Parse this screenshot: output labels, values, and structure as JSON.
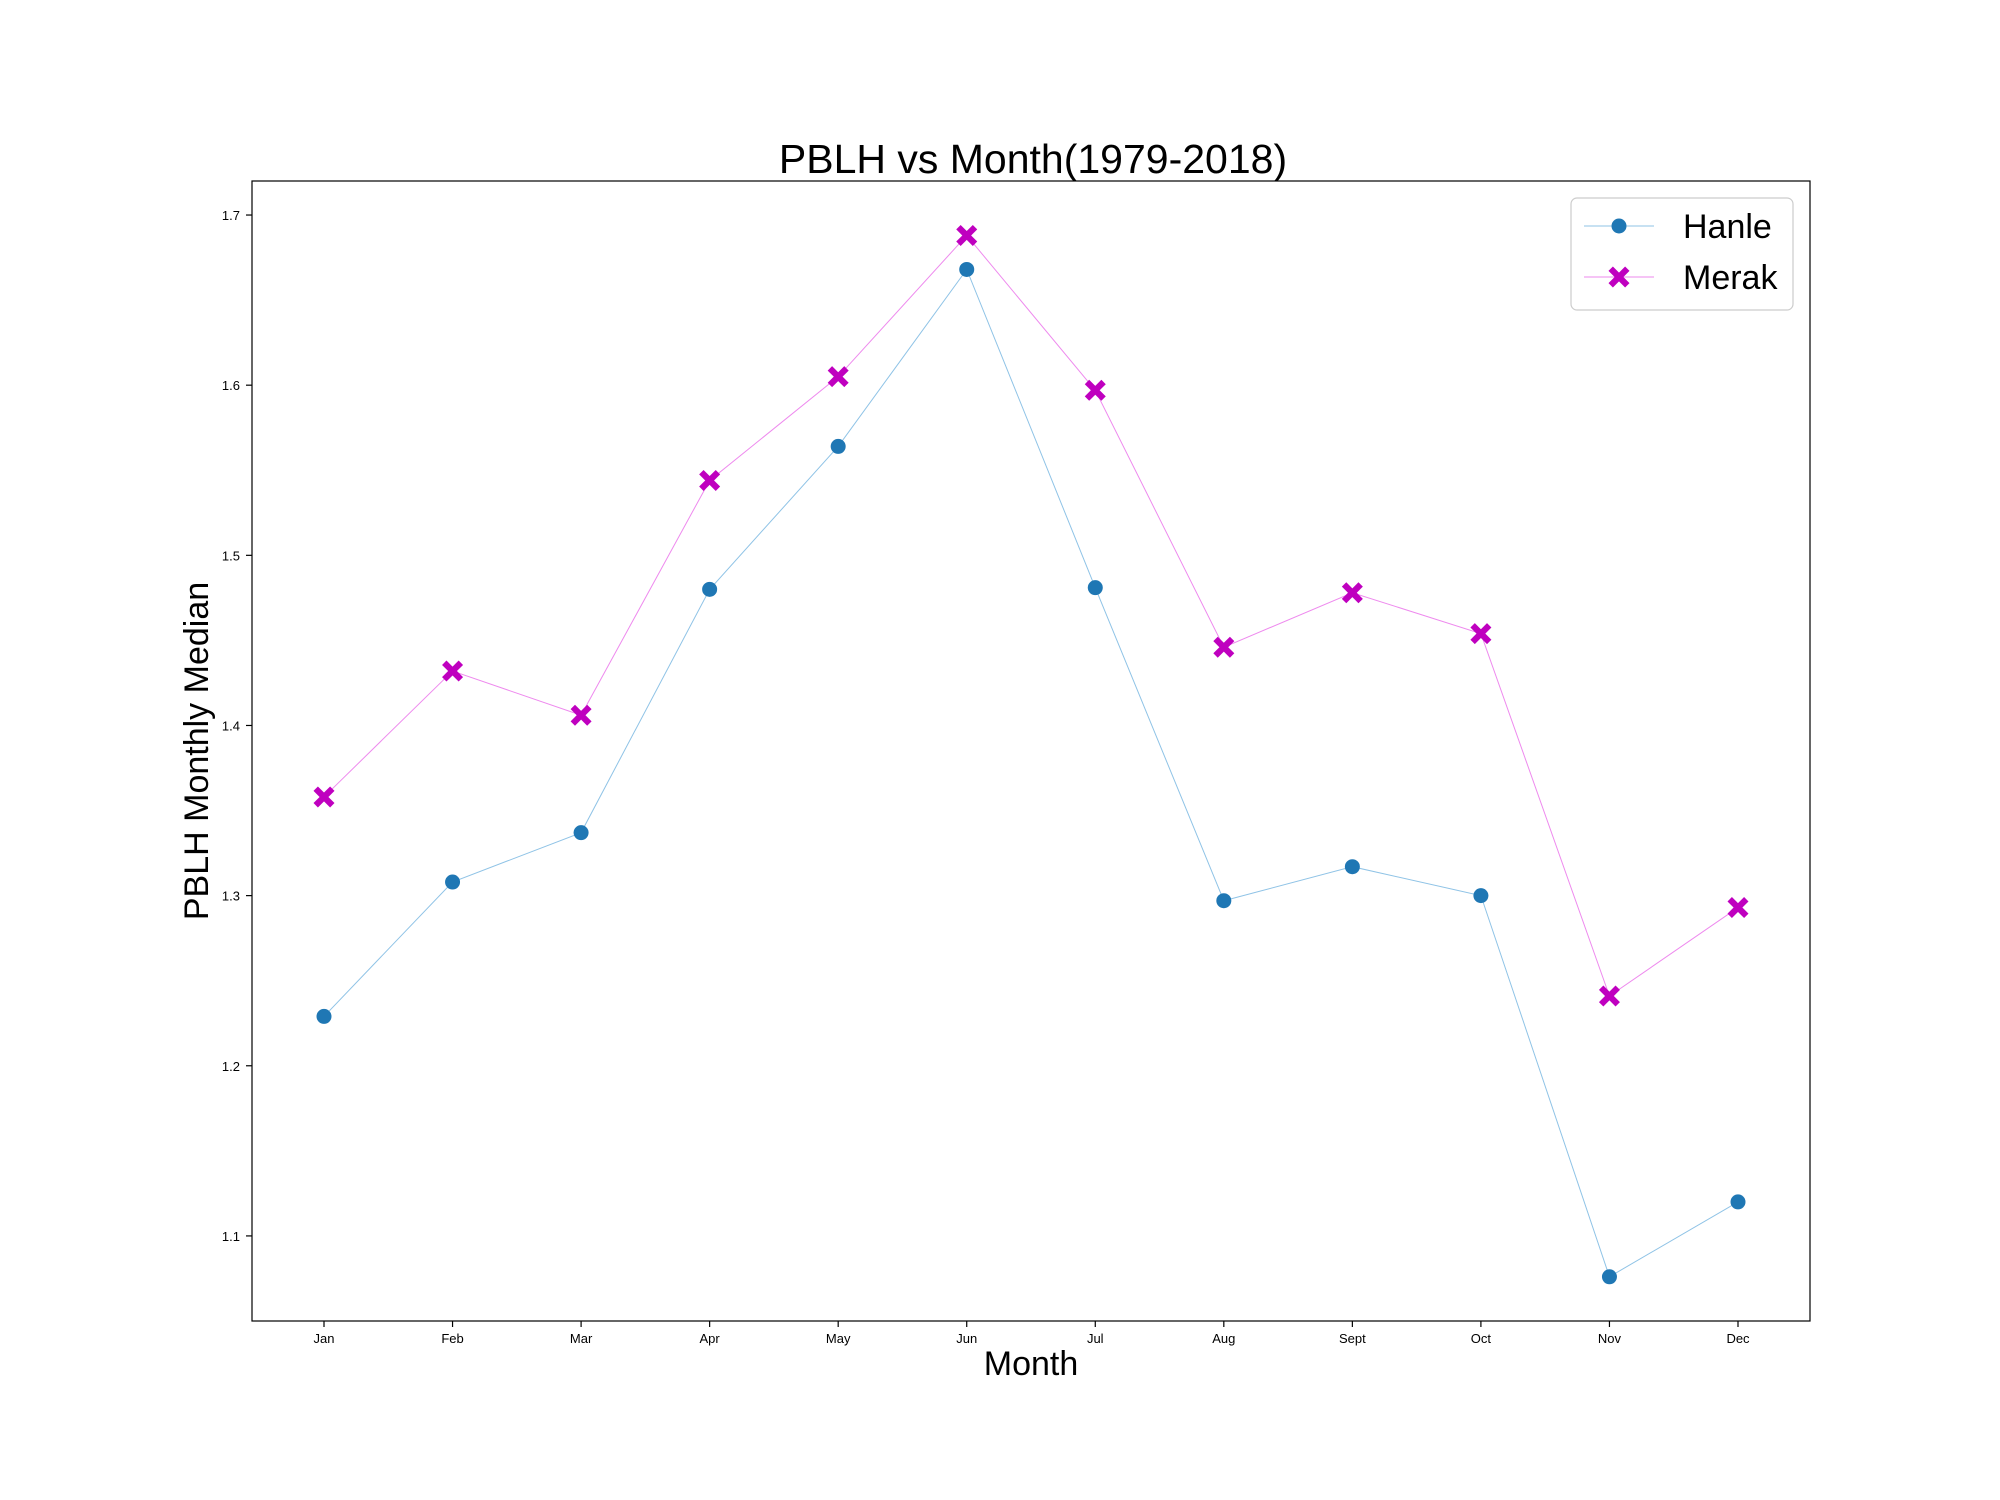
{
  "chart_data": {
    "type": "line",
    "title": "PBLH vs Month(1979-2018)",
    "xlabel": "Month",
    "ylabel": "PBLH Monthly Median",
    "categories": [
      "Jan",
      "Feb",
      "Mar",
      "Apr",
      "May",
      "Jun",
      "Jul",
      "Aug",
      "Sept",
      "Oct",
      "Nov",
      "Dec"
    ],
    "ylim": [
      1.05,
      1.72
    ],
    "yticks": [
      "1.1",
      "1.2",
      "1.3",
      "1.4",
      "1.5",
      "1.6",
      "1.7"
    ],
    "grid": false,
    "legend_position": "top-right",
    "series": [
      {
        "name": "Hanle",
        "marker": "circle",
        "line_color": "#8fc3e6",
        "marker_color": "#1f77b4",
        "values": [
          1.229,
          1.308,
          1.337,
          1.48,
          1.564,
          1.668,
          1.481,
          1.297,
          1.317,
          1.3,
          1.076,
          1.12
        ]
      },
      {
        "name": "Merak",
        "marker": "x-filled",
        "line_color": "#ee8aee",
        "marker_color": "#bf00bf",
        "values": [
          1.358,
          1.432,
          1.406,
          1.544,
          1.605,
          1.688,
          1.597,
          1.446,
          1.478,
          1.454,
          1.241,
          1.293
        ]
      }
    ]
  }
}
